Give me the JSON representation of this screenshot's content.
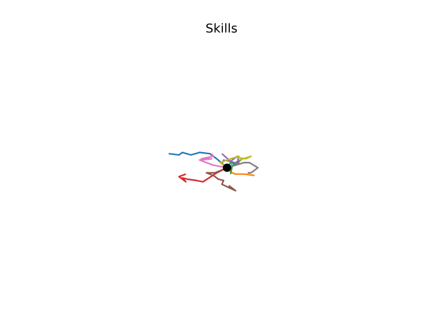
{
  "chart_data": {
    "type": "line",
    "title": "Skills",
    "xlabel": "",
    "ylabel": "",
    "grid": false,
    "axes_visible": false,
    "xlim": [
      -10,
      10
    ],
    "ylim": [
      -10,
      10
    ],
    "center": {
      "x": 0,
      "y": 0,
      "color": "#000000"
    },
    "series": [
      {
        "color": "#1f77b4",
        "x": [
          0,
          -0.6,
          -1.0,
          -1.6,
          -2.1,
          -2.6,
          -2.8,
          -3.4
        ],
        "y": [
          0,
          0.7,
          1.1,
          1.2,
          1.0,
          1.2,
          1.0,
          1.1
        ]
      },
      {
        "color": "#ff7f0e",
        "x": [
          0,
          0.3,
          0.5,
          1.0,
          1.6
        ],
        "y": [
          0,
          -0.4,
          -0.5,
          -0.5,
          -0.6
        ]
      },
      {
        "color": "#2ca02c",
        "x": [
          0,
          0.2,
          0.5,
          0.8,
          0.6,
          0.3,
          0.2
        ],
        "y": [
          0,
          0.4,
          0.3,
          0.6,
          0.5,
          0.1,
          -0.5
        ]
      },
      {
        "color": "#d62728",
        "x": [
          0,
          -0.6,
          -1.4,
          -1.8,
          -2.3,
          -2.6,
          -2.4,
          -2.8,
          -2.4
        ],
        "y": [
          0,
          -0.4,
          -1.1,
          -1.0,
          -0.9,
          -0.8,
          -1.1,
          -0.7,
          -0.5
        ]
      },
      {
        "color": "#9467bd",
        "x": [
          0,
          -0.3,
          -0.2,
          0.2,
          0.6,
          0.7,
          0.2,
          -0.3
        ],
        "y": [
          0,
          0.3,
          0.6,
          0.5,
          0.9,
          0.3,
          0.5,
          1.1
        ]
      },
      {
        "color": "#8c564b",
        "x": [
          0,
          -0.7,
          -1.2,
          -0.8,
          -0.5,
          -0.2,
          -0.3,
          0.5,
          0.1
        ],
        "y": [
          0,
          -0.4,
          -0.4,
          -0.6,
          -0.9,
          -1.0,
          -1.3,
          -1.8,
          -1.4
        ]
      },
      {
        "color": "#e377c2",
        "x": [
          0,
          -0.8,
          -1.6,
          -0.9,
          -1.5,
          -0.8,
          -0.9
        ],
        "y": [
          0,
          0.2,
          0.6,
          0.7,
          0.7,
          0.9,
          1.1
        ]
      },
      {
        "color": "#7f7f7f",
        "x": [
          0,
          0.5,
          1.0,
          1.3,
          1.8,
          1.4,
          1.2
        ],
        "y": [
          0,
          0.2,
          0.4,
          0.4,
          0.0,
          -0.4,
          -0.4
        ]
      },
      {
        "color": "#bcbd22",
        "x": [
          0,
          -0.4,
          0.2,
          0.7,
          0.6,
          1.1,
          1.4,
          0.7
        ],
        "y": [
          0,
          0.4,
          0.7,
          0.9,
          0.8,
          0.7,
          0.9,
          0.6
        ]
      },
      {
        "color": "#17becf",
        "x": [
          0,
          0.2,
          0.3
        ],
        "y": [
          0,
          0.1,
          0.3
        ]
      }
    ]
  }
}
